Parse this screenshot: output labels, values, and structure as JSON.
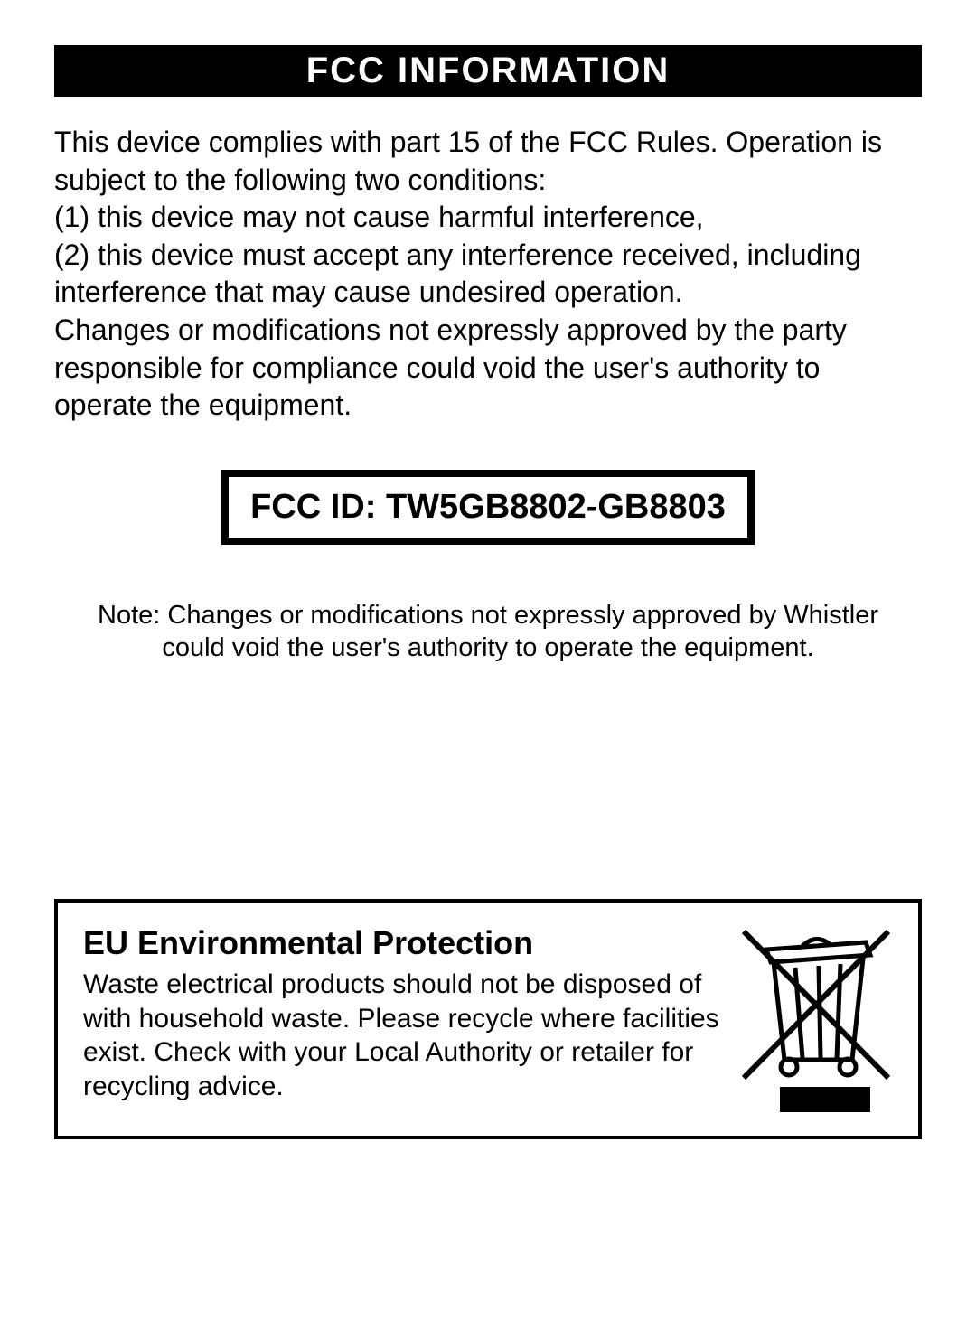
{
  "header": {
    "title": "FCC INFORMATION"
  },
  "fcc_body": {
    "text": "This device complies with part 15 of the FCC Rules. Operation is subject to the following two conditions:\n(1) this device may not cause harmful interference,\n(2) this device must accept any interference received, including interference that may cause undesired operation.\nChanges or modifications not expressly approved by the party responsible for compliance could void the user's authority to operate the equipment."
  },
  "fcc_id_box": {
    "label": "FCC ID: TW5GB8802-GB8803"
  },
  "note": {
    "text": "Note: Changes or modifications not expressly approved by Whistler could void the user's authority to operate the equipment."
  },
  "eu_box": {
    "heading": "EU Environmental Protection",
    "body": "Waste electrical products should not be disposed of with household waste. Please recycle where facilities exist. Check with your Local Authority or retailer for recycling advice.",
    "icon_name": "weee-bin-icon"
  },
  "styling": {
    "header_bg": "#000000",
    "header_fg": "#ffffff",
    "page_bg": "#ffffff",
    "text_color": "#000000",
    "header_fontsize": 40,
    "body_fontsize": 32,
    "fcc_id_fontsize": 38,
    "fcc_id_border_width": 8,
    "note_fontsize": 29,
    "eu_heading_fontsize": 36,
    "eu_body_fontsize": 30,
    "eu_border_width": 4
  }
}
